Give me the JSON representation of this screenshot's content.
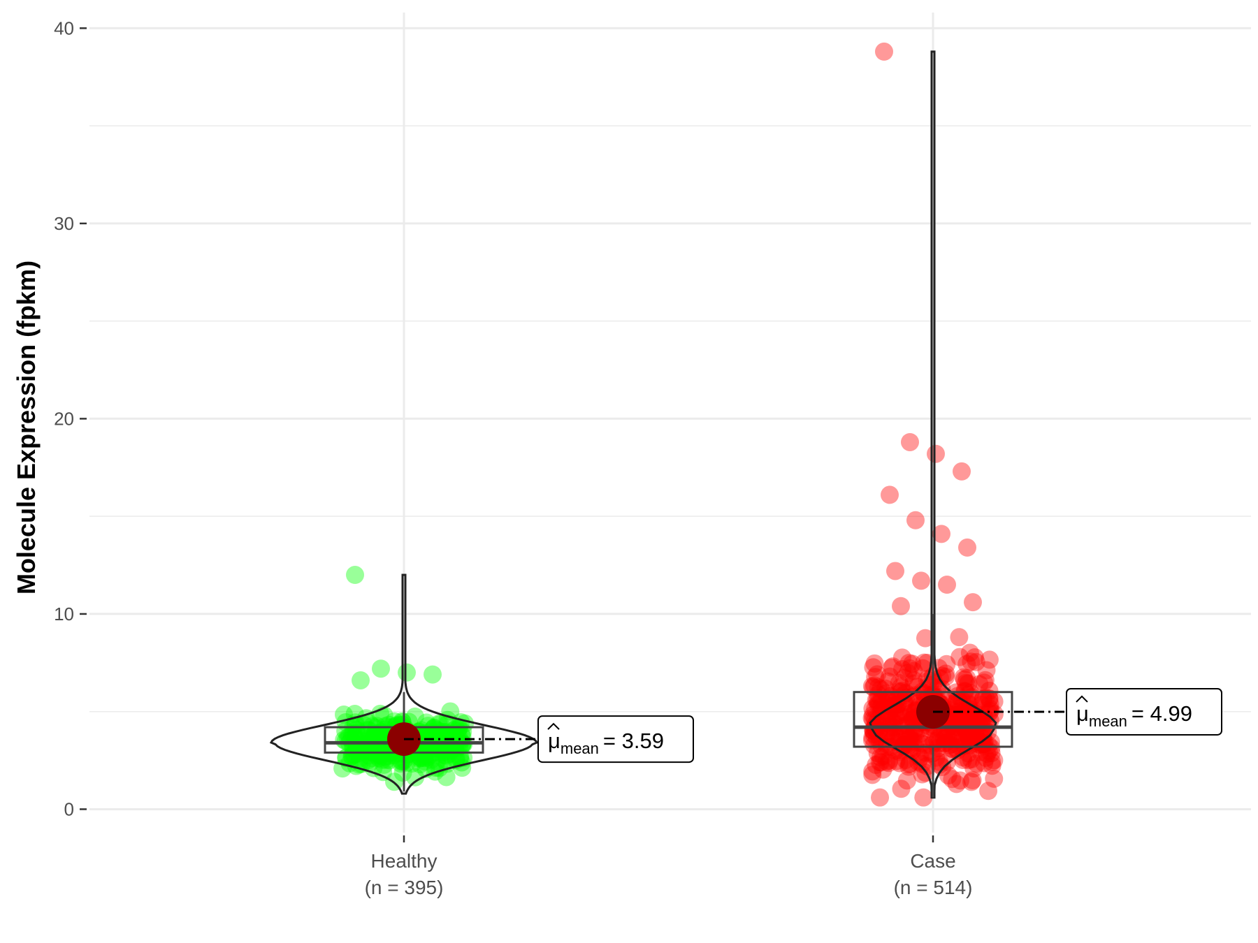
{
  "chart_data": {
    "type": "violin",
    "ylabel": "Molecule Expression (fpkm)",
    "ylim": [
      -1.2,
      40.8
    ],
    "yticks": [
      0,
      10,
      20,
      30,
      40
    ],
    "grid": true,
    "categories": [
      {
        "name": "Healthy",
        "n_label": "(n = 395)",
        "color": "#00ff00",
        "q1": 2.9,
        "median": 3.4,
        "q3": 4.2,
        "whisker_low": 0.9,
        "whisker_high": 6.0,
        "min": 0.8,
        "max": 12.0,
        "mean": 3.59,
        "mean_label": "3.59",
        "outliers": [
          12.0,
          7.2,
          7.0,
          6.9,
          6.6
        ]
      },
      {
        "name": "Case",
        "n_label": "(n = 514)",
        "color": "#ff0000",
        "q1": 3.2,
        "median": 4.2,
        "q3": 6.0,
        "whisker_low": 0.6,
        "whisker_high": 10.0,
        "min": 0.6,
        "max": 38.8,
        "mean": 4.99,
        "mean_label": "4.99",
        "outliers": [
          38.8,
          18.8,
          18.2,
          17.3,
          16.1,
          14.8,
          14.1,
          13.4,
          12.2,
          11.7,
          11.5,
          10.6,
          10.4
        ]
      }
    ],
    "mean_marker_color": "#8b0000",
    "mean_label_prefix": "μ",
    "mean_label_sub": "mean",
    "mean_label_eq": "="
  }
}
